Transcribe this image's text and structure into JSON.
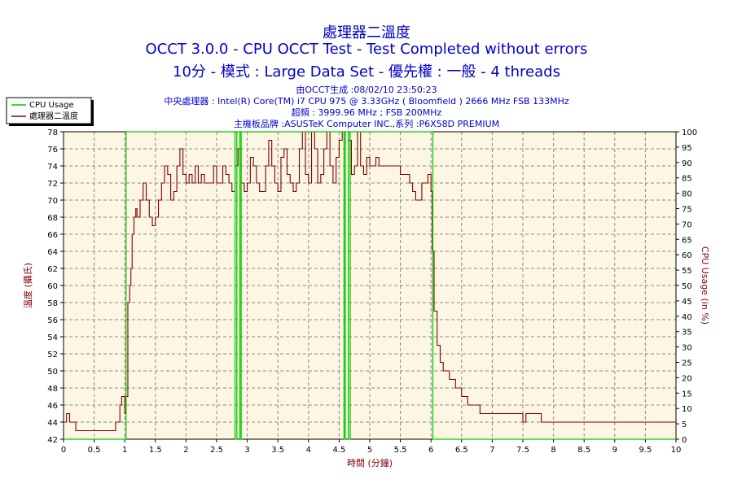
{
  "chart": {
    "title_line1": "處理器二溫度",
    "title_line2": "OCCT 3.0.0 - CPU OCCT Test - Test Completed without errors",
    "title_line3": "10分 - 模式 : Large Data Set - 優先權 : 一般 - 4 threads",
    "info_lines": [
      "由OCCT生成 :08/02/10 23:50:23",
      "中央處理器 : Intel(R) Core(TM) i7 CPU 975 @ 3.33GHz ( Bloomfield ) 2666 MHz FSB 133MHz",
      "超頻 : 3999.96 MHz ; FSB 200MHz",
      "主機板品牌 :ASUSTeK Computer INC.,系列 :P6X58D PREMIUM"
    ]
  },
  "colors": {
    "cpu_usage": "#00cc00",
    "temperature": "#800000",
    "plot_bg": "#fdf6e3",
    "title": "#0000cc"
  },
  "chart_data": {
    "type": "line",
    "xlabel": "時間 (分鐘)",
    "ylabel": "溫度 (攝氏)",
    "y2label": "CPU Usage (in %)",
    "xlim": [
      0,
      10
    ],
    "ylim": [
      42,
      78
    ],
    "y2lim": [
      0,
      100
    ],
    "xticks": [
      0,
      0.5,
      1,
      1.5,
      2,
      2.5,
      3,
      3.5,
      4,
      4.5,
      5,
      5.5,
      6,
      6.5,
      7,
      7.5,
      8,
      8.5,
      9,
      9.5,
      10
    ],
    "yticks": [
      42,
      44,
      46,
      48,
      50,
      52,
      54,
      56,
      58,
      60,
      62,
      64,
      66,
      68,
      70,
      72,
      74,
      76,
      78
    ],
    "y2ticks": [
      0,
      5,
      10,
      15,
      20,
      25,
      30,
      35,
      40,
      45,
      50,
      55,
      60,
      65,
      70,
      75,
      80,
      85,
      90,
      95,
      100
    ],
    "grid": true,
    "legend_position": "top-left",
    "legend": [
      "CPU Usage",
      "處理器二溫度"
    ],
    "series": [
      {
        "name": "處理器二溫度",
        "axis": "left",
        "x": [
          0,
          0.05,
          0.1,
          0.2,
          0.3,
          0.5,
          0.7,
          0.8,
          0.85,
          0.9,
          0.92,
          0.95,
          1.0,
          1.02,
          1.05,
          1.08,
          1.1,
          1.12,
          1.15,
          1.18,
          1.2,
          1.25,
          1.3,
          1.35,
          1.4,
          1.45,
          1.5,
          1.55,
          1.6,
          1.65,
          1.7,
          1.75,
          1.8,
          1.85,
          1.9,
          1.95,
          2.0,
          2.05,
          2.1,
          2.15,
          2.2,
          2.25,
          2.3,
          2.35,
          2.4,
          2.45,
          2.5,
          2.55,
          2.6,
          2.65,
          2.7,
          2.75,
          2.8,
          2.85,
          2.9,
          2.95,
          3.0,
          3.05,
          3.1,
          3.15,
          3.2,
          3.25,
          3.3,
          3.35,
          3.4,
          3.45,
          3.5,
          3.55,
          3.6,
          3.65,
          3.7,
          3.75,
          3.8,
          3.85,
          3.9,
          3.95,
          4.0,
          4.05,
          4.1,
          4.15,
          4.2,
          4.25,
          4.3,
          4.35,
          4.4,
          4.45,
          4.5,
          4.55,
          4.6,
          4.65,
          4.7,
          4.75,
          4.8,
          4.85,
          4.9,
          4.95,
          5.0,
          5.05,
          5.1,
          5.15,
          5.2,
          5.3,
          5.4,
          5.5,
          5.6,
          5.65,
          5.7,
          5.75,
          5.8,
          5.85,
          5.9,
          5.95,
          6.0,
          6.02,
          6.05,
          6.1,
          6.15,
          6.2,
          6.3,
          6.4,
          6.5,
          6.55,
          6.6,
          6.7,
          6.8,
          6.9,
          7.0,
          7.2,
          7.4,
          7.45,
          7.5,
          7.55,
          7.6,
          7.8,
          8.0,
          8.5,
          9.0,
          9.5,
          10.0
        ],
        "y": [
          44,
          45,
          44,
          43,
          43,
          43,
          43,
          43,
          44,
          44,
          46,
          47,
          45,
          47,
          58,
          60,
          62,
          66,
          68,
          69,
          68,
          70,
          72,
          70,
          68,
          67,
          68,
          70,
          72,
          74,
          73,
          70,
          71,
          74,
          76,
          73,
          72,
          73,
          72,
          74,
          72,
          73,
          72,
          72,
          72,
          74,
          72,
          72,
          74,
          73,
          72,
          71,
          74,
          76,
          72,
          71,
          72,
          75,
          74,
          72,
          71,
          71,
          74,
          77,
          74,
          72,
          71,
          75,
          76,
          73,
          72,
          71,
          72,
          76,
          78,
          73,
          72,
          78,
          76,
          72,
          73,
          76,
          78,
          74,
          72,
          75,
          77,
          78,
          78,
          77,
          73,
          74,
          78,
          74,
          73,
          75,
          74,
          74,
          75,
          74,
          74,
          74,
          74,
          73,
          73,
          72,
          71,
          70,
          70,
          72,
          72,
          73,
          71,
          64,
          57,
          53,
          51,
          50,
          49,
          48,
          47,
          47,
          46,
          46,
          45,
          45,
          45,
          45,
          45,
          45,
          44,
          45,
          45,
          44,
          44,
          44,
          44,
          44,
          44
        ]
      },
      {
        "name": "CPU Usage",
        "axis": "right",
        "x": [
          0,
          1.0,
          1.02,
          1.05,
          1.08,
          1.1,
          1.12,
          1.15,
          2.78,
          2.8,
          2.83,
          2.85,
          2.88,
          2.9,
          2.92,
          4.55,
          4.58,
          4.6,
          4.63,
          4.65,
          4.68,
          4.7,
          6.0,
          6.02,
          6.03,
          6.05,
          6.08,
          10.0
        ],
        "y": [
          0,
          0,
          100,
          100,
          100,
          100,
          100,
          100,
          100,
          0,
          100,
          100,
          0,
          100,
          100,
          100,
          0,
          100,
          100,
          0,
          100,
          100,
          100,
          100,
          0,
          0,
          0,
          0
        ]
      }
    ]
  }
}
